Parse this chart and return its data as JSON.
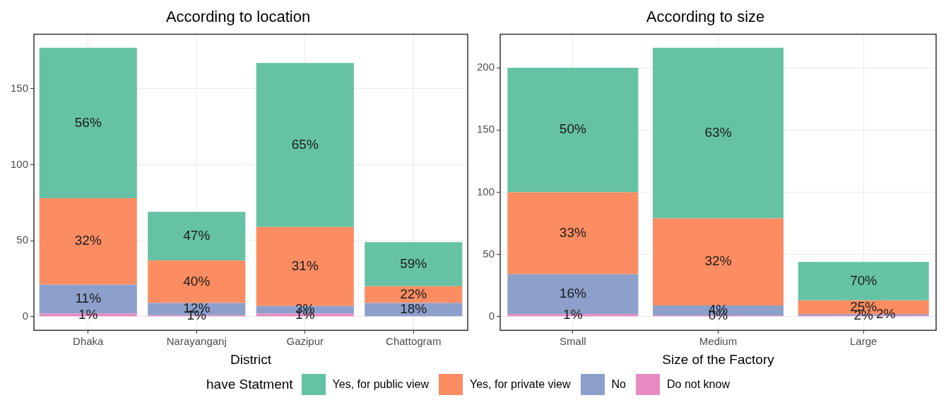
{
  "chart_data": [
    {
      "type": "bar",
      "title": "According to location",
      "xlabel": "District",
      "categories": [
        "Dhaka",
        "Narayanganj",
        "Gazipur",
        "Chattogram"
      ],
      "stacked": true,
      "ylim": [
        -9,
        186
      ],
      "yticks": [
        0,
        50,
        100,
        150
      ],
      "grid": true,
      "legend": "bottom",
      "legend_title": "have Statment",
      "series": [
        {
          "name": "Do not know",
          "color": "#e78ac3",
          "values": [
            2,
            1,
            2,
            null
          ]
        },
        {
          "name": "No",
          "color": "#8da0cb",
          "values": [
            19,
            8,
            5,
            9
          ]
        },
        {
          "name": "Yes, for private view",
          "color": "#fc8d62",
          "values": [
            57,
            28,
            52,
            11
          ]
        },
        {
          "name": "Yes, for public view",
          "color": "#66c2a5",
          "values": [
            99,
            32,
            108,
            29
          ]
        }
      ],
      "annotations": [
        "1%",
        "11%",
        "32%",
        "56%",
        "1%",
        "12%",
        "40%",
        "47%",
        "1%",
        "3%",
        "31%",
        "65%",
        "18%",
        "22%",
        "59%"
      ]
    },
    {
      "type": "bar",
      "title": "According to size",
      "xlabel": "Size of the Factory",
      "categories": [
        "Small",
        "Medium",
        "Large"
      ],
      "stacked": true,
      "ylim": [
        -11,
        227
      ],
      "yticks": [
        0,
        50,
        100,
        150,
        200
      ],
      "grid": true,
      "series": [
        {
          "color": "#e78ac3",
          "values": [
            2,
            1,
            1
          ]
        },
        {
          "color": "#8da0cb",
          "values": [
            32,
            8,
            1
          ]
        },
        {
          "color": "#fc8d62",
          "values": [
            66,
            70,
            11
          ]
        },
        {
          "color": "#66c2a5",
          "values": [
            100,
            137,
            31
          ]
        }
      ],
      "annotations": [
        "1%",
        "16%",
        "33%",
        "50%",
        "0%",
        "4%",
        "32%",
        "63%",
        "2%",
        "2%",
        "25%",
        "70%"
      ]
    }
  ]
}
